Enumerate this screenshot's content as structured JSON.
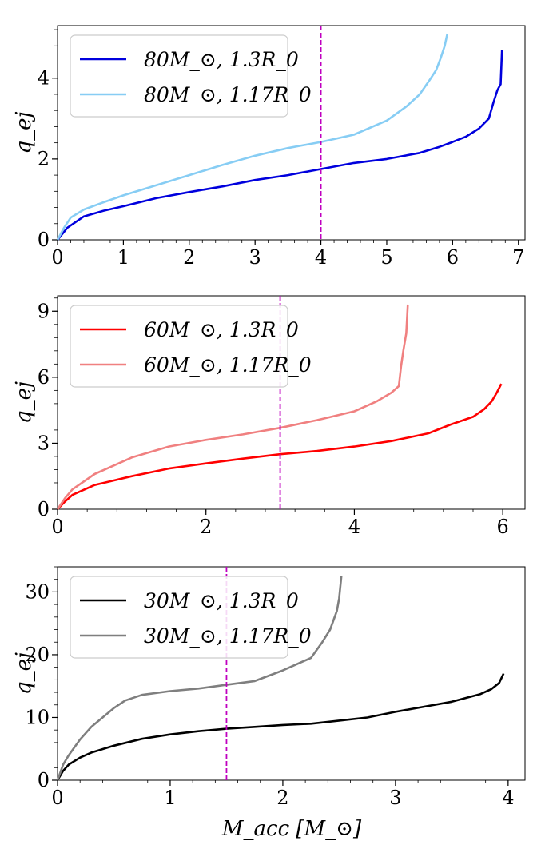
{
  "colors": {
    "ref_line": "#bf00bf",
    "axes": "#000000",
    "legend_border": "#cccccc"
  },
  "xlabel": "M_acc [M_⊙]",
  "chart_data": [
    {
      "type": "line",
      "ylabel": "q_ej",
      "xlim": [
        0,
        7.1
      ],
      "ylim": [
        0,
        5.3
      ],
      "xticks": [
        0,
        1,
        2,
        3,
        4,
        5,
        6,
        7
      ],
      "yticks": [
        0,
        2,
        4
      ],
      "ref_x": 4,
      "legend_position": "upper-left",
      "series": [
        {
          "name": "80M_⊙, 1.3R_0",
          "color": "#0000dd",
          "points": [
            [
              0,
              0
            ],
            [
              0.15,
              0.3
            ],
            [
              0.4,
              0.58
            ],
            [
              0.7,
              0.72
            ],
            [
              1,
              0.83
            ],
            [
              1.5,
              1.03
            ],
            [
              2,
              1.18
            ],
            [
              2.5,
              1.32
            ],
            [
              3,
              1.48
            ],
            [
              3.5,
              1.6
            ],
            [
              4,
              1.75
            ],
            [
              4.5,
              1.9
            ],
            [
              5,
              2.0
            ],
            [
              5.5,
              2.15
            ],
            [
              5.8,
              2.3
            ],
            [
              6,
              2.42
            ],
            [
              6.2,
              2.55
            ],
            [
              6.4,
              2.75
            ],
            [
              6.55,
              3.0
            ],
            [
              6.62,
              3.4
            ],
            [
              6.68,
              3.7
            ],
            [
              6.73,
              3.85
            ],
            [
              6.75,
              4.7
            ]
          ]
        },
        {
          "name": "80M_⊙, 1.17R_0",
          "color": "#87cdf4",
          "points": [
            [
              0,
              0
            ],
            [
              0.1,
              0.3
            ],
            [
              0.2,
              0.55
            ],
            [
              0.4,
              0.75
            ],
            [
              0.7,
              0.93
            ],
            [
              1,
              1.1
            ],
            [
              1.5,
              1.35
            ],
            [
              2,
              1.6
            ],
            [
              2.5,
              1.85
            ],
            [
              3,
              2.08
            ],
            [
              3.5,
              2.27
            ],
            [
              4,
              2.42
            ],
            [
              4.5,
              2.6
            ],
            [
              5,
              2.95
            ],
            [
              5.3,
              3.3
            ],
            [
              5.5,
              3.6
            ],
            [
              5.65,
              3.95
            ],
            [
              5.75,
              4.2
            ],
            [
              5.82,
              4.5
            ],
            [
              5.88,
              4.8
            ],
            [
              5.92,
              5.1
            ]
          ]
        }
      ]
    },
    {
      "type": "line",
      "ylabel": "q_ej",
      "xlim": [
        0,
        6.3
      ],
      "ylim": [
        0,
        9.7
      ],
      "xticks": [
        0,
        2,
        4,
        6
      ],
      "yticks": [
        0,
        3,
        6,
        9
      ],
      "ref_x": 3,
      "legend_position": "upper-left",
      "series": [
        {
          "name": "60M_⊙, 1.3R_0",
          "color": "#ff0000",
          "points": [
            [
              0,
              0
            ],
            [
              0.1,
              0.35
            ],
            [
              0.2,
              0.65
            ],
            [
              0.5,
              1.1
            ],
            [
              1,
              1.5
            ],
            [
              1.5,
              1.85
            ],
            [
              2,
              2.08
            ],
            [
              2.5,
              2.3
            ],
            [
              3,
              2.5
            ],
            [
              3.5,
              2.65
            ],
            [
              4,
              2.85
            ],
            [
              4.5,
              3.1
            ],
            [
              5,
              3.45
            ],
            [
              5.3,
              3.85
            ],
            [
              5.6,
              4.2
            ],
            [
              5.75,
              4.55
            ],
            [
              5.85,
              4.9
            ],
            [
              5.92,
              5.3
            ],
            [
              5.98,
              5.7
            ]
          ]
        },
        {
          "name": "60M_⊙, 1.17R_0",
          "color": "#f08080",
          "points": [
            [
              0,
              0
            ],
            [
              0.1,
              0.5
            ],
            [
              0.2,
              0.9
            ],
            [
              0.5,
              1.6
            ],
            [
              1,
              2.35
            ],
            [
              1.5,
              2.85
            ],
            [
              2,
              3.15
            ],
            [
              2.5,
              3.4
            ],
            [
              3,
              3.7
            ],
            [
              3.5,
              4.05
            ],
            [
              4,
              4.45
            ],
            [
              4.3,
              4.9
            ],
            [
              4.5,
              5.3
            ],
            [
              4.6,
              5.6
            ],
            [
              4.63,
              6.5
            ],
            [
              4.66,
              7.2
            ],
            [
              4.7,
              8
            ],
            [
              4.72,
              9.3
            ]
          ]
        }
      ]
    },
    {
      "type": "line",
      "ylabel": "q_ej",
      "xlim": [
        0,
        4.15
      ],
      "ylim": [
        0,
        34
      ],
      "xticks": [
        0,
        1,
        2,
        3,
        4
      ],
      "yticks": [
        0,
        10,
        20,
        30
      ],
      "ref_x": 1.5,
      "legend_position": "upper-left",
      "series": [
        {
          "name": "30M_⊙, 1.3R_0",
          "color": "#000000",
          "points": [
            [
              0,
              0
            ],
            [
              0.05,
              1.5
            ],
            [
              0.1,
              2.5
            ],
            [
              0.2,
              3.6
            ],
            [
              0.3,
              4.4
            ],
            [
              0.5,
              5.5
            ],
            [
              0.75,
              6.6
            ],
            [
              1,
              7.3
            ],
            [
              1.25,
              7.8
            ],
            [
              1.5,
              8.2
            ],
            [
              1.75,
              8.5
            ],
            [
              2,
              8.8
            ],
            [
              2.25,
              9.0
            ],
            [
              2.5,
              9.5
            ],
            [
              2.75,
              10.0
            ],
            [
              3,
              10.9
            ],
            [
              3.25,
              11.7
            ],
            [
              3.5,
              12.5
            ],
            [
              3.75,
              13.7
            ],
            [
              3.85,
              14.5
            ],
            [
              3.92,
              15.5
            ],
            [
              3.96,
              17
            ]
          ]
        },
        {
          "name": "30M_⊙, 1.17R_0",
          "color": "#7f7f7f",
          "points": [
            [
              0,
              0
            ],
            [
              0.05,
              2.5
            ],
            [
              0.1,
              4.0
            ],
            [
              0.2,
              6.5
            ],
            [
              0.3,
              8.5
            ],
            [
              0.4,
              10
            ],
            [
              0.5,
              11.5
            ],
            [
              0.6,
              12.7
            ],
            [
              0.75,
              13.6
            ],
            [
              1,
              14.2
            ],
            [
              1.25,
              14.6
            ],
            [
              1.5,
              15.2
            ],
            [
              1.75,
              15.8
            ],
            [
              2,
              17.5
            ],
            [
              2.25,
              19.5
            ],
            [
              2.35,
              22
            ],
            [
              2.42,
              24
            ],
            [
              2.48,
              27
            ],
            [
              2.5,
              29
            ],
            [
              2.52,
              32.5
            ]
          ]
        }
      ]
    }
  ]
}
